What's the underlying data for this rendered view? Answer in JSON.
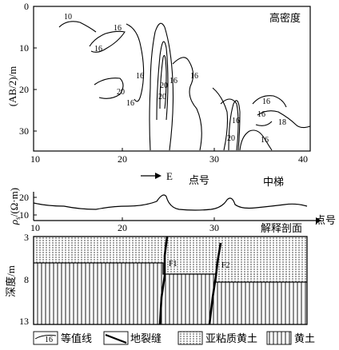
{
  "top_panel": {
    "title": "高密度",
    "y_axis_label": "(AB/2)/m",
    "y_ticks": [
      "0",
      "10",
      "20",
      "30"
    ],
    "x_ticks": [
      "10",
      "20",
      "30",
      "40"
    ],
    "contour_labels": [
      "10",
      "16",
      "16",
      "16",
      "16",
      "20",
      "16",
      "20",
      "20",
      "16",
      "16",
      "16",
      "16",
      "18",
      "20",
      "16"
    ]
  },
  "middle_panel": {
    "direction_label": "E",
    "point_label": "点号",
    "method_label": "中梯",
    "y_axis_symbol": "ρ",
    "y_axis_subscript": "s",
    "y_axis_unit": "/(Ω·m)",
    "y_ticks": [
      "20",
      "10"
    ],
    "x_ticks": [
      "10",
      "20",
      "30"
    ],
    "x_axis_label": "点号",
    "section_title": "解释剖面"
  },
  "bottom_panel": {
    "y_axis_label": "深度/m",
    "y_ticks": [
      "3",
      "8",
      "13"
    ],
    "fault_labels": [
      "F1",
      "F2"
    ]
  },
  "legend": {
    "contour_sample": "16",
    "contour": "等值线",
    "fissure": "地裂缝",
    "subclay_loess": "亚粘质黄土",
    "loess": "黄土"
  },
  "colors": {
    "ink": "#000000",
    "paper": "#ffffff"
  }
}
